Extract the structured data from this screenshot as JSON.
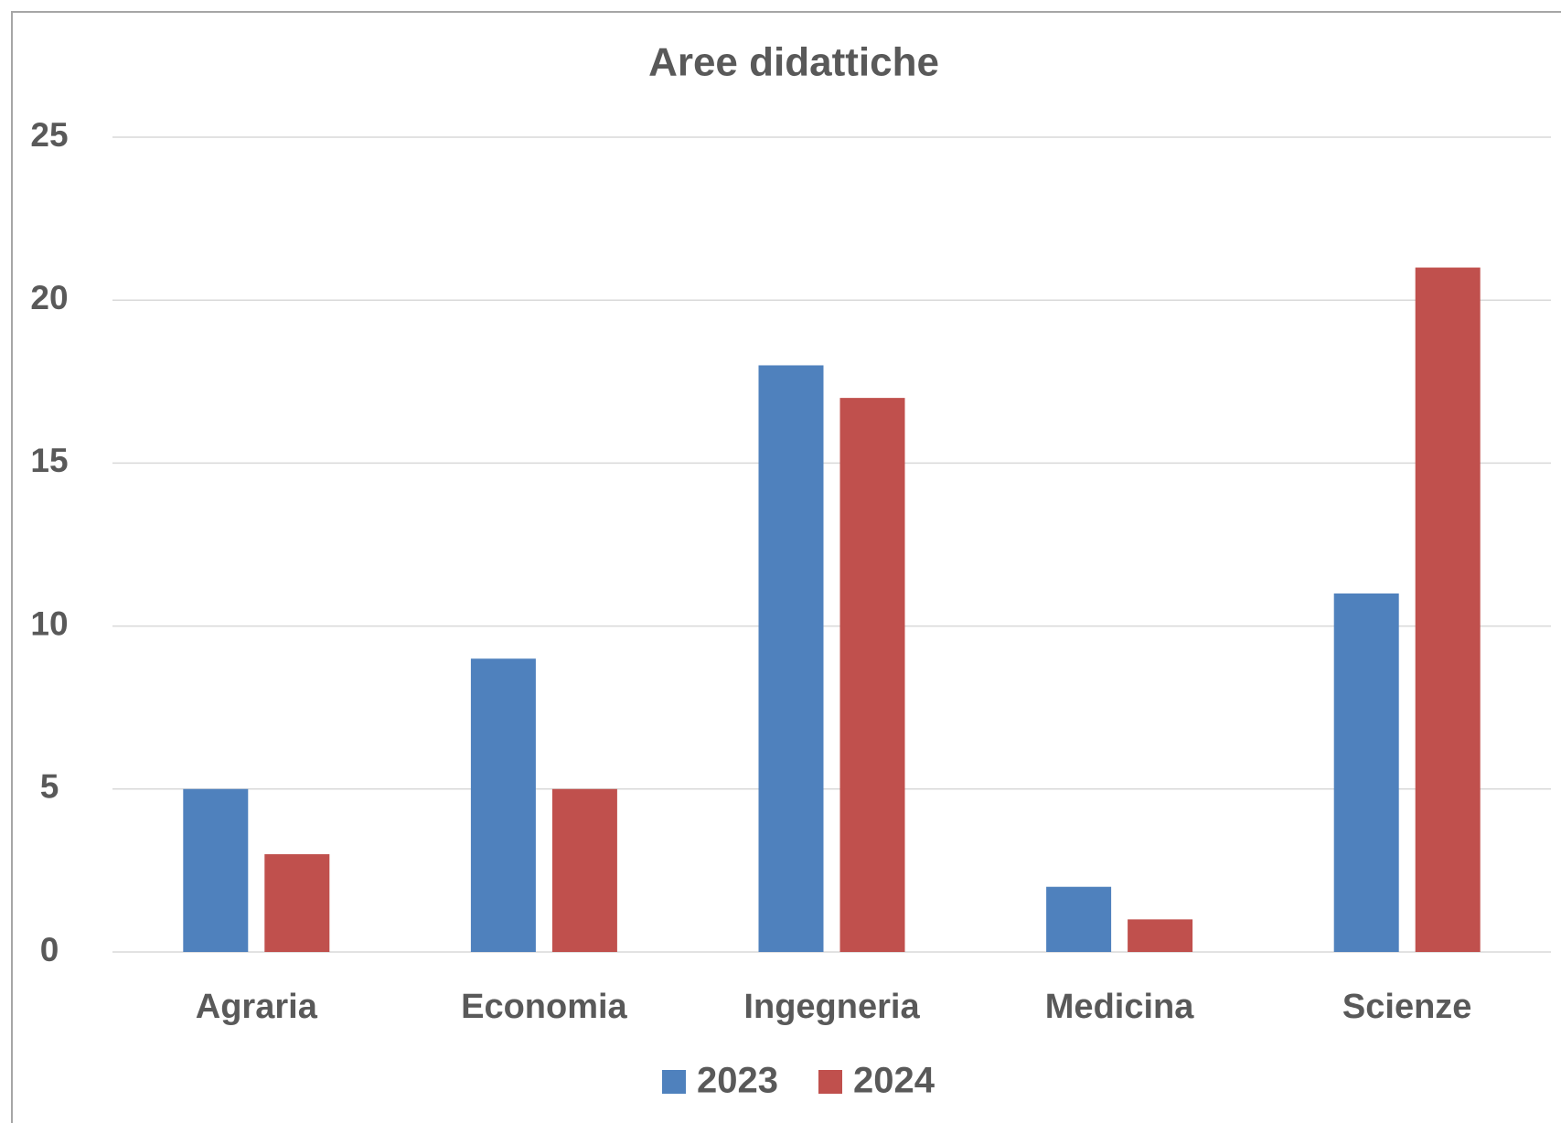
{
  "chart_data": {
    "type": "bar",
    "title": "Aree didattiche",
    "categories": [
      "Agraria",
      "Economia",
      "Ingegneria",
      "Medicina",
      "Scienze"
    ],
    "series": [
      {
        "name": "2023",
        "color": "#4f81bd",
        "values": [
          5,
          9,
          18,
          2,
          11
        ]
      },
      {
        "name": "2024",
        "color": "#c0504d",
        "values": [
          3,
          5,
          17,
          1,
          21
        ]
      }
    ],
    "ylim": [
      0,
      25
    ],
    "yticks": [
      0,
      5,
      10,
      15,
      20,
      25
    ],
    "grid": true,
    "legend": "bottom"
  }
}
